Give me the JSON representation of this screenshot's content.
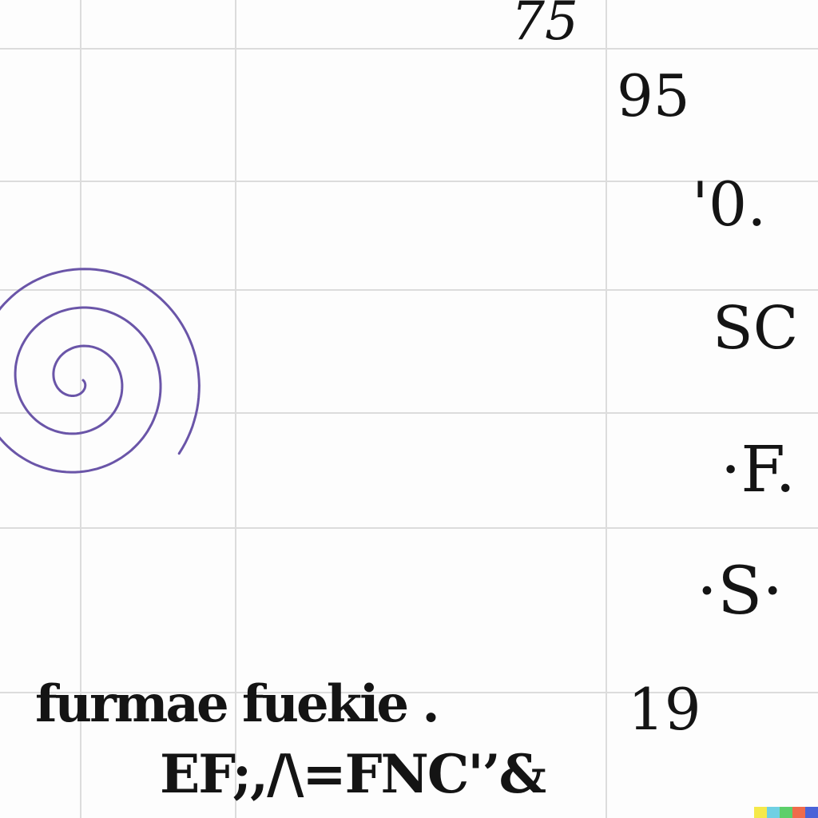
{
  "glyphs": {
    "top_number": "75",
    "number_95": "95",
    "letter_0": "'0.",
    "letters_sc": "SC",
    "letters_f": "·F.",
    "letter_s": "·S·",
    "number_19": "19",
    "bottom_line_1": "furmae fuekie .",
    "bottom_line_2": "EF;,/\\=FNC'’&"
  },
  "colors": {
    "grid": "#dcdcdc",
    "ink": "#141414",
    "spiral": "#6a55a8",
    "watermark": [
      "#f5e94a",
      "#6fd0e3",
      "#5ccf6a",
      "#ef6b4b",
      "#4a63d8"
    ]
  },
  "icons": {
    "spiral": "spiral-drawing",
    "watermark": "color-bar-watermark"
  }
}
